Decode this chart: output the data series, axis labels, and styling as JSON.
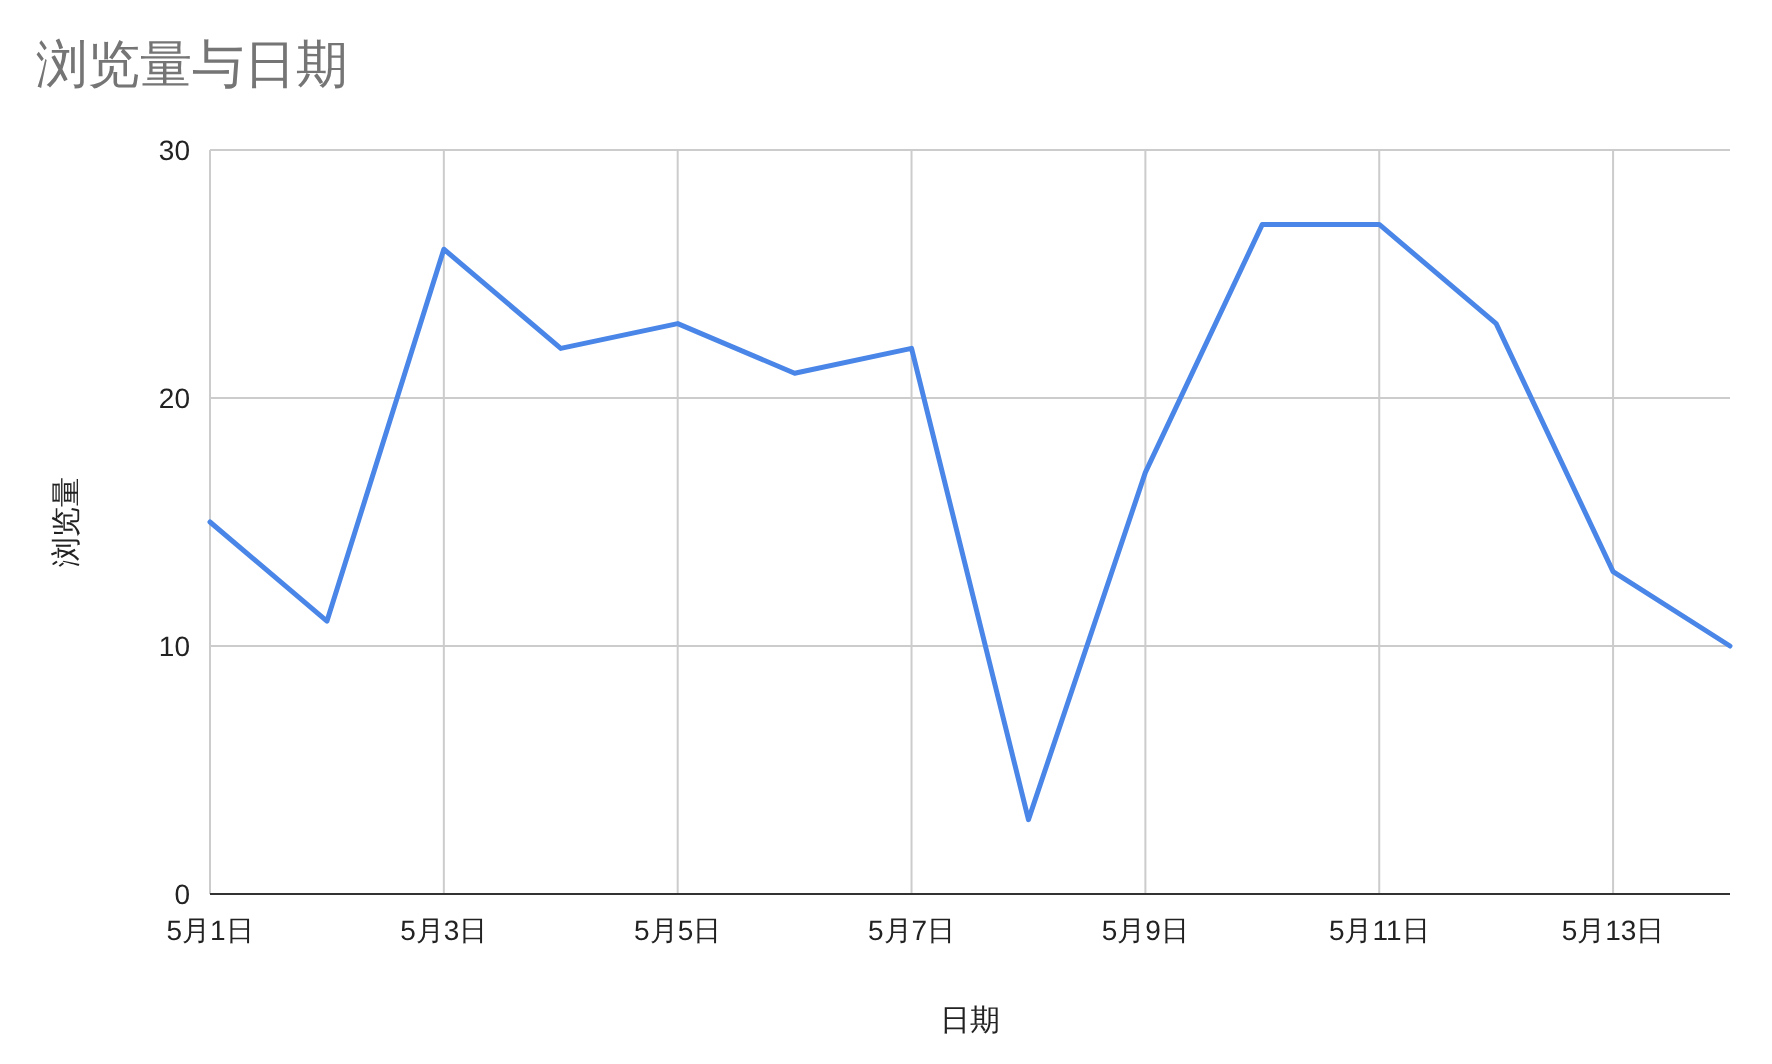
{
  "chart_data": {
    "type": "line",
    "title": "浏览量与日期",
    "xlabel": "日期",
    "ylabel": "浏览量",
    "categories": [
      "5月1日",
      null,
      "5月3日",
      null,
      "5月5日",
      null,
      "5月7日",
      null,
      "5月9日",
      null,
      "5月11日",
      null,
      "5月13日",
      null
    ],
    "series": [
      {
        "color": "#4a86e8",
        "values": [
          15,
          11,
          26,
          22,
          23,
          21,
          22,
          3,
          17,
          27,
          27,
          23,
          13,
          10
        ]
      }
    ],
    "ylim": [
      0,
      30
    ],
    "yticks": [
      0,
      10,
      20,
      30
    ],
    "grid": true,
    "marker": "none",
    "line_style": "solid"
  }
}
